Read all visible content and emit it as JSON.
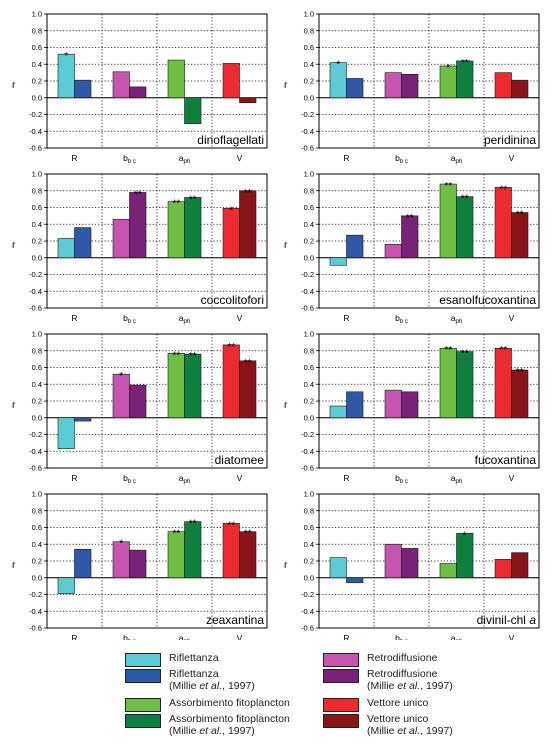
{
  "colors": {
    "R": "#5ccbd4",
    "R_millie": "#2e57a8",
    "b": "#c655b0",
    "b_millie": "#7a2278",
    "a": "#6dbf45",
    "a_millie": "#0f8040",
    "V": "#ee2a2f",
    "V_millie": "#8a1518"
  },
  "ylabel": "r",
  "yticks": [
    "1.0",
    "0.8",
    "0.6",
    "0.4",
    "0.2",
    "0.0",
    "-0.2",
    "-0.4",
    "-0.6"
  ],
  "xtick_labels": [
    {
      "main": "R",
      "sub": ""
    },
    {
      "main": "b",
      "sub": "b c"
    },
    {
      "main": "a",
      "sub": "ph"
    },
    {
      "main": "V",
      "sub": ""
    }
  ],
  "chart_data": [
    {
      "type": "bar",
      "title": "dinoflagellati",
      "title_italic": "",
      "ylim": [
        -0.6,
        1.0
      ],
      "grid": true,
      "values": [
        0.52,
        0.21,
        0.31,
        0.13,
        0.45,
        -0.31,
        0.41,
        -0.06
      ],
      "stars": [
        "*",
        "",
        "",
        "",
        "",
        "",
        "",
        ""
      ]
    },
    {
      "type": "bar",
      "title": "peridinina",
      "title_italic": "",
      "ylim": [
        -0.6,
        1.0
      ],
      "grid": true,
      "values": [
        0.42,
        0.23,
        0.3,
        0.28,
        0.38,
        0.44,
        0.3,
        0.21
      ],
      "stars": [
        "*",
        "",
        "",
        "",
        "*",
        "**",
        "",
        ""
      ]
    },
    {
      "type": "bar",
      "title": "coccolitofori",
      "title_italic": "",
      "ylim": [
        -0.6,
        1.0
      ],
      "grid": true,
      "values": [
        0.23,
        0.36,
        0.46,
        0.78,
        0.67,
        0.72,
        0.59,
        0.8
      ],
      "stars": [
        "",
        "",
        "",
        "**",
        "**",
        "**",
        "*",
        "**"
      ]
    },
    {
      "type": "bar",
      "title": "esanolfucoxantina",
      "title_italic": "",
      "ylim": [
        -0.6,
        1.0
      ],
      "grid": true,
      "values": [
        -0.09,
        0.27,
        0.16,
        0.5,
        0.88,
        0.73,
        0.84,
        0.54
      ],
      "stars": [
        "",
        "",
        "",
        "**",
        "**",
        "**",
        "**",
        "**"
      ]
    },
    {
      "type": "bar",
      "title": "diatomee",
      "title_italic": "",
      "ylim": [
        -0.6,
        1.0
      ],
      "grid": true,
      "values": [
        -0.37,
        -0.04,
        0.52,
        0.39,
        0.77,
        0.76,
        0.87,
        0.68
      ],
      "stars": [
        "",
        "",
        "*",
        "",
        "**",
        "**",
        "**",
        "**"
      ]
    },
    {
      "type": "bar",
      "title": "fucoxantina",
      "title_italic": "",
      "ylim": [
        -0.6,
        1.0
      ],
      "grid": true,
      "values": [
        0.14,
        0.31,
        0.33,
        0.31,
        0.83,
        0.79,
        0.83,
        0.57
      ],
      "stars": [
        "",
        "",
        "",
        "",
        "**",
        "**",
        "**",
        "**"
      ]
    },
    {
      "type": "bar",
      "title": "zeaxantina",
      "title_italic": "",
      "ylim": [
        -0.6,
        1.0
      ],
      "grid": true,
      "values": [
        -0.19,
        0.34,
        0.43,
        0.33,
        0.55,
        0.67,
        0.65,
        0.55
      ],
      "stars": [
        "",
        "",
        "*",
        "",
        "**",
        "**",
        "**",
        "**"
      ]
    },
    {
      "type": "bar",
      "title": "divinil-chl ",
      "title_italic": "a",
      "ylim": [
        -0.6,
        1.0
      ],
      "grid": true,
      "values": [
        0.24,
        -0.06,
        0.4,
        0.35,
        0.17,
        0.53,
        0.22,
        0.3
      ],
      "stars": [
        "",
        "",
        "",
        "",
        "",
        "*",
        "",
        ""
      ]
    }
  ],
  "legend": [
    {
      "label": "Riflettanza",
      "sub_prefix": "",
      "sub_em": "",
      "sub_suffix": "",
      "color_key": "R"
    },
    {
      "label": "Riflettanza",
      "sub_prefix": "(Millie ",
      "sub_em": "et al.",
      "sub_suffix": ", 1997)",
      "color_key": "R_millie"
    },
    {
      "label": "Assorbimento fitoplancton",
      "sub_prefix": "",
      "sub_em": "",
      "sub_suffix": "",
      "color_key": "a"
    },
    {
      "label": "Assorbimento fitoplancton",
      "sub_prefix": "(Millie ",
      "sub_em": "et al.",
      "sub_suffix": ", 1997)",
      "color_key": "a_millie"
    },
    {
      "label": "Retrodiffusione",
      "sub_prefix": "",
      "sub_em": "",
      "sub_suffix": "",
      "color_key": "b"
    },
    {
      "label": "Retrodiffusione",
      "sub_prefix": "(Millie ",
      "sub_em": "et al.",
      "sub_suffix": ", 1997)",
      "color_key": "b_millie"
    },
    {
      "label": "Vettore unico",
      "sub_prefix": "",
      "sub_em": "",
      "sub_suffix": "",
      "color_key": "V"
    },
    {
      "label": "Vettore unico",
      "sub_prefix": "(Millie ",
      "sub_em": "et al.",
      "sub_suffix": ", 1997)",
      "color_key": "V_millie"
    }
  ]
}
